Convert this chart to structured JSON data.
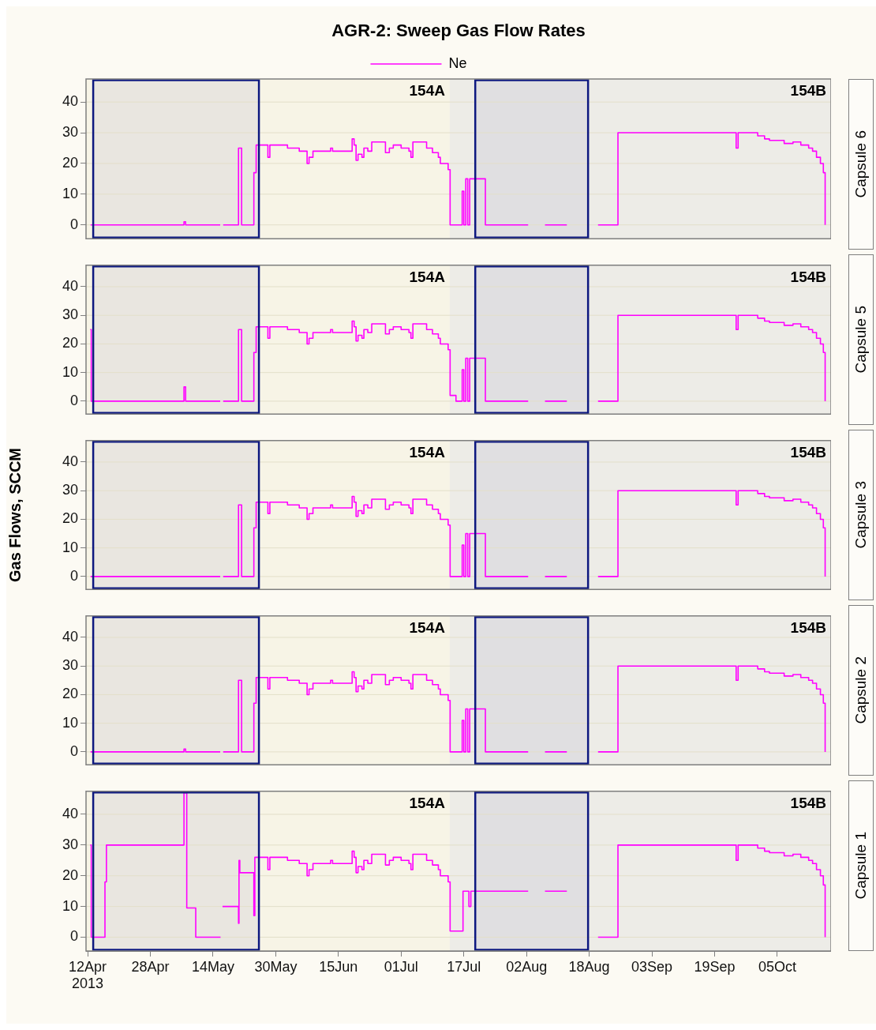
{
  "chart_data": [
    {
      "type": "step",
      "title": "AGR-2: Sweep Gas Flow Rates",
      "y2label": "Capsule 6",
      "legend": "top",
      "marker": "none",
      "grid": "y",
      "tick_labels": "y",
      "xlim": [
        "2013-04-11T14:00",
        "2013-10-18T17:00"
      ],
      "ylim": [
        -4.5,
        47.5
      ],
      "yticks": [
        0,
        10,
        20,
        30,
        40
      ],
      "bands": [
        {
          "axis": "x",
          "from": "2013-04-11T14:00",
          "to": "2013-07-13T10:00",
          "label": "154A",
          "color": "#f7f4e6"
        },
        {
          "axis": "x",
          "from": "2013-07-13T10:00",
          "to": "2013-10-18T17:00",
          "label": "154B",
          "color": "#edece7"
        },
        {
          "axis": "x",
          "from": "2013-04-13T10:00",
          "to": "2013-05-25T17:00",
          "color": "#0d1880"
        },
        {
          "axis": "x",
          "from": "2013-07-19T22:00",
          "to": "2013-08-17T17:00",
          "color": "#0d1880"
        }
      ],
      "series": [
        {
          "name": "Ne",
          "color": "#ff00ff",
          "x": [
            "2013-04-12T18:00",
            "2013-05-06T14:00",
            "2013-05-07",
            "2013-05-15T20:00",
            "2013-05-16T02:00",
            "2013-05-16T14:00",
            "2013-05-20T12:00",
            "2013-05-21T07:00",
            "2013-05-24T10:00",
            "2013-05-25",
            "2013-05-28",
            "2013-05-28T12:00",
            "2013-06-02",
            "2013-06-05",
            "2013-06-07",
            "2013-06-07T12:00",
            "2013-06-08T12:00",
            "2013-06-13",
            "2013-06-13T12:00",
            "2013-06-18T12:00",
            "2013-06-19",
            "2013-06-19T12:00",
            "2013-06-20",
            "2013-06-21",
            "2013-06-21T12:00",
            "2013-06-22T12:00",
            "2013-06-23T12:00",
            "2013-06-27",
            "2013-06-28",
            "2013-06-29",
            "2013-07-01",
            "2013-07-03",
            "2013-07-03T12:00",
            "2013-07-04",
            "2013-07-07T12:00",
            "2013-07-09",
            "2013-07-10T12:00",
            "2013-07-11",
            "2013-07-13",
            "2013-07-13T12:00",
            "2013-07-16T14:00",
            "2013-07-17",
            "2013-07-17T12:00",
            "2013-07-18",
            "2013-07-18T12:00",
            "2013-07-22T12:00",
            "2013-08-02T10:00",
            "2013-08-04",
            "2013-08-06T17:00",
            "2013-08-12T07:00",
            "2013-08-16",
            "2013-08-20T06:00",
            "2013-08-25T08:00",
            "2013-09-24T12:00",
            "2013-09-25",
            "2013-09-30",
            "2013-10-01T18:00",
            "2013-10-03",
            "2013-10-06T18:00",
            "2013-10-09",
            "2013-10-11",
            "2013-10-13",
            "2013-10-14",
            "2013-10-15",
            "2013-10-16",
            "2013-10-16T18:00",
            "2013-10-17T05:00"
          ],
          "values": [
            0,
            1,
            0,
            0,
            null,
            0,
            25,
            0,
            17,
            26,
            22,
            26,
            25,
            24,
            20,
            22,
            24,
            25,
            24,
            28,
            26,
            21,
            23,
            22,
            25,
            24,
            27,
            23.5,
            25,
            26,
            25,
            24,
            22,
            27,
            25,
            23.5,
            22,
            20,
            18,
            0,
            11,
            0,
            15,
            0,
            15,
            0,
            0,
            null,
            0,
            0,
            null,
            0,
            30,
            25,
            30,
            29,
            28,
            27.5,
            26.5,
            27,
            26,
            25,
            24,
            22,
            20,
            17,
            0
          ]
        }
      ]
    },
    {
      "type": "step",
      "y2label": "Capsule 5",
      "marker": "none",
      "grid": "y",
      "tick_labels": "y",
      "xlim": [
        "2013-04-11T14:00",
        "2013-10-18T17:00"
      ],
      "ylim": [
        -4.5,
        47.5
      ],
      "yticks": [
        0,
        10,
        20,
        30,
        40
      ],
      "bands": [
        {
          "axis": "x",
          "from": "2013-04-11T14:00",
          "to": "2013-07-13T10:00",
          "label": "154A",
          "color": "#f7f4e6"
        },
        {
          "axis": "x",
          "from": "2013-07-13T10:00",
          "to": "2013-10-18T17:00",
          "label": "154B",
          "color": "#edece7"
        },
        {
          "axis": "x",
          "from": "2013-04-13T10:00",
          "to": "2013-05-25T17:00",
          "color": "#0d1880"
        },
        {
          "axis": "x",
          "from": "2013-07-19T22:00",
          "to": "2013-08-17T17:00",
          "color": "#0d1880"
        }
      ],
      "series": [
        {
          "color": "#ff00ff",
          "x": [
            "2013-04-12T16:00",
            "2013-04-12T22:00",
            "2013-05-06T14:00",
            "2013-05-07",
            "2013-05-15T20:00",
            "2013-05-16T02:00",
            "2013-05-16T14:00",
            "2013-05-20T12:00",
            "2013-05-21T07:00",
            "2013-05-24T10:00",
            "2013-05-25",
            "2013-05-28",
            "2013-05-28T12:00",
            "2013-06-02",
            "2013-06-05",
            "2013-06-07",
            "2013-06-07T12:00",
            "2013-06-08T12:00",
            "2013-06-13",
            "2013-06-13T12:00",
            "2013-06-18T12:00",
            "2013-06-19",
            "2013-06-19T12:00",
            "2013-06-20",
            "2013-06-21",
            "2013-06-21T12:00",
            "2013-06-22T12:00",
            "2013-06-23T12:00",
            "2013-06-27",
            "2013-06-28",
            "2013-06-29",
            "2013-07-01",
            "2013-07-03",
            "2013-07-03T12:00",
            "2013-07-04",
            "2013-07-07T12:00",
            "2013-07-09",
            "2013-07-10T12:00",
            "2013-07-11",
            "2013-07-13",
            "2013-07-13T12:00",
            "2013-07-15",
            "2013-07-16T14:00",
            "2013-07-17",
            "2013-07-17T12:00",
            "2013-07-18",
            "2013-07-18T12:00",
            "2013-07-22T12:00",
            "2013-08-02T10:00",
            "2013-08-04",
            "2013-08-06T17:00",
            "2013-08-12T07:00",
            "2013-08-16",
            "2013-08-20T06:00",
            "2013-08-25T08:00",
            "2013-09-24T12:00",
            "2013-09-25",
            "2013-09-30",
            "2013-10-01T18:00",
            "2013-10-03",
            "2013-10-06T18:00",
            "2013-10-09",
            "2013-10-11",
            "2013-10-13",
            "2013-10-14",
            "2013-10-15",
            "2013-10-16",
            "2013-10-16T18:00",
            "2013-10-17T05:00"
          ],
          "values": [
            25,
            0,
            5,
            0,
            0,
            null,
            0,
            25,
            0,
            17,
            26,
            22,
            26,
            25,
            24,
            20,
            22,
            24,
            25,
            24,
            28,
            26,
            21,
            23,
            22,
            25,
            24,
            27,
            23.5,
            25,
            26,
            25,
            24,
            22,
            27,
            25,
            23.5,
            22,
            20,
            18,
            2,
            0,
            11,
            0,
            15,
            0,
            15,
            0,
            0,
            null,
            0,
            0,
            null,
            0,
            30,
            25,
            30,
            29,
            28,
            27.5,
            26.5,
            27,
            26,
            25,
            24,
            22,
            20,
            17,
            0
          ]
        }
      ]
    },
    {
      "type": "step",
      "ylabel": "Gas Flows, SCCM",
      "y2label": "Capsule 3",
      "marker": "none",
      "grid": "y",
      "tick_labels": "y",
      "xlim": [
        "2013-04-11T14:00",
        "2013-10-18T17:00"
      ],
      "ylim": [
        -4.5,
        47.5
      ],
      "yticks": [
        0,
        10,
        20,
        30,
        40
      ],
      "bands": [
        {
          "axis": "x",
          "from": "2013-04-11T14:00",
          "to": "2013-07-13T10:00",
          "label": "154A",
          "color": "#f7f4e6"
        },
        {
          "axis": "x",
          "from": "2013-07-13T10:00",
          "to": "2013-10-18T17:00",
          "label": "154B",
          "color": "#edece7"
        },
        {
          "axis": "x",
          "from": "2013-04-13T10:00",
          "to": "2013-05-25T17:00",
          "color": "#0d1880"
        },
        {
          "axis": "x",
          "from": "2013-07-19T22:00",
          "to": "2013-08-17T17:00",
          "color": "#0d1880"
        }
      ],
      "series": [
        {
          "color": "#ff00ff",
          "x": [
            "2013-04-12T18:00",
            "2013-05-15T20:00",
            "2013-05-16T02:00",
            "2013-05-16T14:00",
            "2013-05-20T12:00",
            "2013-05-21T07:00",
            "2013-05-24T10:00",
            "2013-05-25",
            "2013-05-28",
            "2013-05-28T12:00",
            "2013-06-02",
            "2013-06-05",
            "2013-06-07",
            "2013-06-07T12:00",
            "2013-06-08T12:00",
            "2013-06-13",
            "2013-06-13T12:00",
            "2013-06-18T12:00",
            "2013-06-19",
            "2013-06-19T12:00",
            "2013-06-20",
            "2013-06-21",
            "2013-06-21T12:00",
            "2013-06-22T12:00",
            "2013-06-23T12:00",
            "2013-06-27",
            "2013-06-28",
            "2013-06-29",
            "2013-07-01",
            "2013-07-03",
            "2013-07-03T12:00",
            "2013-07-04",
            "2013-07-07T12:00",
            "2013-07-09",
            "2013-07-10T12:00",
            "2013-07-11",
            "2013-07-13",
            "2013-07-13T12:00",
            "2013-07-16T14:00",
            "2013-07-17",
            "2013-07-17T12:00",
            "2013-07-18",
            "2013-07-18T12:00",
            "2013-07-22T12:00",
            "2013-08-02T10:00",
            "2013-08-04",
            "2013-08-06T17:00",
            "2013-08-12T07:00",
            "2013-08-16",
            "2013-08-20T06:00",
            "2013-08-25T08:00",
            "2013-09-24T12:00",
            "2013-09-25",
            "2013-09-30",
            "2013-10-01T18:00",
            "2013-10-03",
            "2013-10-06T18:00",
            "2013-10-09",
            "2013-10-11",
            "2013-10-13",
            "2013-10-14",
            "2013-10-15",
            "2013-10-16",
            "2013-10-16T18:00",
            "2013-10-17T05:00"
          ],
          "values": [
            0,
            0,
            null,
            0,
            25,
            0,
            17,
            26,
            22,
            26,
            25,
            24,
            20,
            22,
            24,
            25,
            24,
            28,
            26,
            21,
            23,
            22,
            25,
            24,
            27,
            23.5,
            25,
            26,
            25,
            24,
            22,
            27,
            25,
            23.5,
            22,
            20,
            18,
            0,
            11,
            0,
            15,
            0,
            15,
            0,
            0,
            null,
            0,
            0,
            null,
            0,
            30,
            25,
            30,
            29,
            28,
            27.5,
            26.5,
            27,
            26,
            25,
            24,
            22,
            20,
            17,
            0
          ]
        }
      ]
    },
    {
      "type": "step",
      "y2label": "Capsule 2",
      "marker": "none",
      "grid": "y",
      "tick_labels": "y",
      "xlim": [
        "2013-04-11T14:00",
        "2013-10-18T17:00"
      ],
      "ylim": [
        -4.5,
        47.5
      ],
      "yticks": [
        0,
        10,
        20,
        30,
        40
      ],
      "bands": [
        {
          "axis": "x",
          "from": "2013-04-11T14:00",
          "to": "2013-07-13T10:00",
          "label": "154A",
          "color": "#f7f4e6"
        },
        {
          "axis": "x",
          "from": "2013-07-13T10:00",
          "to": "2013-10-18T17:00",
          "label": "154B",
          "color": "#edece7"
        },
        {
          "axis": "x",
          "from": "2013-04-13T10:00",
          "to": "2013-05-25T17:00",
          "color": "#0d1880"
        },
        {
          "axis": "x",
          "from": "2013-07-19T22:00",
          "to": "2013-08-17T17:00",
          "color": "#0d1880"
        }
      ],
      "series": [
        {
          "color": "#ff00ff",
          "x": [
            "2013-04-12T18:00",
            "2013-05-06T14:00",
            "2013-05-07",
            "2013-05-15T20:00",
            "2013-05-16T02:00",
            "2013-05-16T14:00",
            "2013-05-20T12:00",
            "2013-05-21T07:00",
            "2013-05-24T10:00",
            "2013-05-25",
            "2013-05-28",
            "2013-05-28T12:00",
            "2013-06-02",
            "2013-06-05",
            "2013-06-07",
            "2013-06-07T12:00",
            "2013-06-08T12:00",
            "2013-06-13",
            "2013-06-13T12:00",
            "2013-06-18T12:00",
            "2013-06-19",
            "2013-06-19T12:00",
            "2013-06-20",
            "2013-06-21",
            "2013-06-21T12:00",
            "2013-06-22T12:00",
            "2013-06-23T12:00",
            "2013-06-27",
            "2013-06-28",
            "2013-06-29",
            "2013-07-01",
            "2013-07-03",
            "2013-07-03T12:00",
            "2013-07-04",
            "2013-07-07T12:00",
            "2013-07-09",
            "2013-07-10T12:00",
            "2013-07-11",
            "2013-07-13",
            "2013-07-13T12:00",
            "2013-07-16T14:00",
            "2013-07-17",
            "2013-07-17T12:00",
            "2013-07-18",
            "2013-07-18T12:00",
            "2013-07-22T12:00",
            "2013-08-02T10:00",
            "2013-08-04",
            "2013-08-06T17:00",
            "2013-08-12T07:00",
            "2013-08-16",
            "2013-08-20T06:00",
            "2013-08-25T08:00",
            "2013-09-24T12:00",
            "2013-09-25",
            "2013-09-30",
            "2013-10-01T18:00",
            "2013-10-03",
            "2013-10-06T18:00",
            "2013-10-09",
            "2013-10-11",
            "2013-10-13",
            "2013-10-14",
            "2013-10-15",
            "2013-10-16",
            "2013-10-16T18:00",
            "2013-10-17T05:00"
          ],
          "values": [
            0,
            1,
            0,
            0,
            null,
            0,
            25,
            0,
            17,
            26,
            22,
            26,
            25,
            24,
            20,
            22,
            24,
            25,
            24,
            28,
            26,
            21,
            23,
            22,
            25,
            24,
            27,
            23.5,
            25,
            26,
            25,
            24,
            22,
            27,
            25,
            23.5,
            22,
            20,
            18,
            0,
            11,
            0,
            15,
            0,
            15,
            0,
            0,
            null,
            0,
            0,
            null,
            0,
            30,
            25,
            30,
            29,
            28,
            27.5,
            26.5,
            27,
            26,
            25,
            24,
            22,
            20,
            17,
            0
          ]
        }
      ]
    },
    {
      "type": "step",
      "y2label": "Capsule 1",
      "marker": "none",
      "grid": "y",
      "xlim": [
        "2013-04-11T14:00",
        "2013-10-18T17:00"
      ],
      "ylim": [
        -4.5,
        47.5
      ],
      "yticks": [
        0,
        10,
        20,
        30,
        40
      ],
      "xticks": [
        {
          "value": "2013-04-12",
          "label": "12Apr\n2013"
        },
        {
          "value": "2013-04-28",
          "label": "28Apr"
        },
        {
          "value": "2013-05-14",
          "label": "14May"
        },
        {
          "value": "2013-05-30",
          "label": "30May"
        },
        {
          "value": "2013-06-15",
          "label": "15Jun"
        },
        {
          "value": "2013-07-01",
          "label": "01Jul"
        },
        {
          "value": "2013-07-17",
          "label": "17Jul"
        },
        {
          "value": "2013-08-02",
          "label": "02Aug"
        },
        {
          "value": "2013-08-18",
          "label": "18Aug"
        },
        {
          "value": "2013-09-03",
          "label": "03Sep"
        },
        {
          "value": "2013-09-19",
          "label": "19Sep"
        },
        {
          "value": "2013-10-05",
          "label": "05Oct"
        }
      ],
      "bands": [
        {
          "axis": "x",
          "from": "2013-04-11T14:00",
          "to": "2013-07-13T10:00",
          "label": "154A",
          "color": "#f7f4e6"
        },
        {
          "axis": "x",
          "from": "2013-07-13T10:00",
          "to": "2013-10-18T17:00",
          "label": "154B",
          "color": "#edece7"
        },
        {
          "axis": "x",
          "from": "2013-04-13T10:00",
          "to": "2013-05-25T17:00",
          "color": "#0d1880"
        },
        {
          "axis": "x",
          "from": "2013-07-19T22:00",
          "to": "2013-08-17T17:00",
          "color": "#0d1880"
        }
      ],
      "series": [
        {
          "color": "#ff00ff",
          "x": [
            "2013-04-12T16:00",
            "2013-04-12T22:00",
            "2013-04-16T10:00",
            "2013-04-16T19:00",
            "2013-05-06T14:00",
            "2013-05-07T07:00",
            "2013-05-09T14:00",
            "2013-05-15T22:00",
            "2013-05-16T03:00",
            "2013-05-16T10:00",
            "2013-05-20T12:00",
            "2013-05-20T15:00",
            "2013-05-20T20:00",
            "2013-05-24T10:00",
            "2013-05-24T16:00",
            "2013-05-25",
            "2013-05-28",
            "2013-05-28T12:00",
            "2013-06-02",
            "2013-06-05",
            "2013-06-07",
            "2013-06-07T12:00",
            "2013-06-08T12:00",
            "2013-06-13",
            "2013-06-13T12:00",
            "2013-06-18T12:00",
            "2013-06-19",
            "2013-06-19T12:00",
            "2013-06-20",
            "2013-06-21",
            "2013-06-21T12:00",
            "2013-06-22T12:00",
            "2013-06-23T12:00",
            "2013-06-27",
            "2013-06-28",
            "2013-06-29",
            "2013-07-01",
            "2013-07-03",
            "2013-07-03T12:00",
            "2013-07-04",
            "2013-07-07T12:00",
            "2013-07-09",
            "2013-07-10T12:00",
            "2013-07-11",
            "2013-07-13",
            "2013-07-13T12:00",
            "2013-07-16T19:00",
            "2013-07-18T07:00",
            "2013-07-18T19:00",
            "2013-08-02T10:00",
            "2013-08-04",
            "2013-08-06T17:00",
            "2013-08-12T07:00",
            "2013-08-16",
            "2013-08-20T06:00",
            "2013-08-25T08:00",
            "2013-09-24T12:00",
            "2013-09-25",
            "2013-09-30",
            "2013-10-01T18:00",
            "2013-10-03",
            "2013-10-06T18:00",
            "2013-10-09",
            "2013-10-11",
            "2013-10-13",
            "2013-10-14",
            "2013-10-15",
            "2013-10-16",
            "2013-10-16T18:00",
            "2013-10-17T05:00"
          ],
          "values": [
            30,
            0,
            18,
            30,
            47,
            9.5,
            0,
            0,
            null,
            10,
            4.5,
            25,
            21,
            7,
            26,
            26,
            22,
            26,
            25,
            24,
            20,
            22,
            24,
            25,
            24,
            28,
            26,
            21,
            23,
            22,
            25,
            24,
            27,
            23.5,
            25,
            26,
            25,
            24,
            22,
            27,
            25,
            23.5,
            22,
            20,
            18,
            2,
            15,
            10,
            15,
            15,
            null,
            15,
            15,
            null,
            0,
            30,
            25,
            30,
            29,
            28,
            27.5,
            26.5,
            27,
            26,
            25,
            24,
            22,
            20,
            17,
            0
          ]
        }
      ]
    }
  ]
}
